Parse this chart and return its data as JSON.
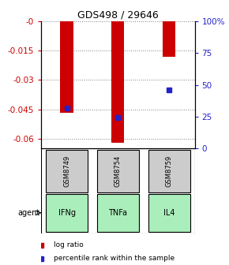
{
  "title": "GDS498 / 29646",
  "samples": [
    "GSM8749",
    "GSM8754",
    "GSM8759"
  ],
  "agents": [
    "IFNg",
    "TNFa",
    "IL4"
  ],
  "log_ratios": [
    -0.047,
    -0.062,
    -0.018
  ],
  "percentile_ranks": [
    32,
    24,
    46
  ],
  "ylim_left": [
    -0.065,
    0.0
  ],
  "ylim_right": [
    0,
    100
  ],
  "yticks_left": [
    0.0,
    -0.015,
    -0.03,
    -0.045,
    -0.06
  ],
  "yticks_right": [
    0,
    25,
    50,
    75,
    100
  ],
  "bar_color": "#cc0000",
  "dot_color": "#2222cc",
  "sample_box_color": "#cccccc",
  "agent_color": "#aaeebb",
  "left_tick_color": "#cc0000",
  "right_tick_color": "#2222cc",
  "legend_bar_label": "log ratio",
  "legend_dot_label": "percentile rank within the sample",
  "fig_width": 2.9,
  "fig_height": 3.36
}
